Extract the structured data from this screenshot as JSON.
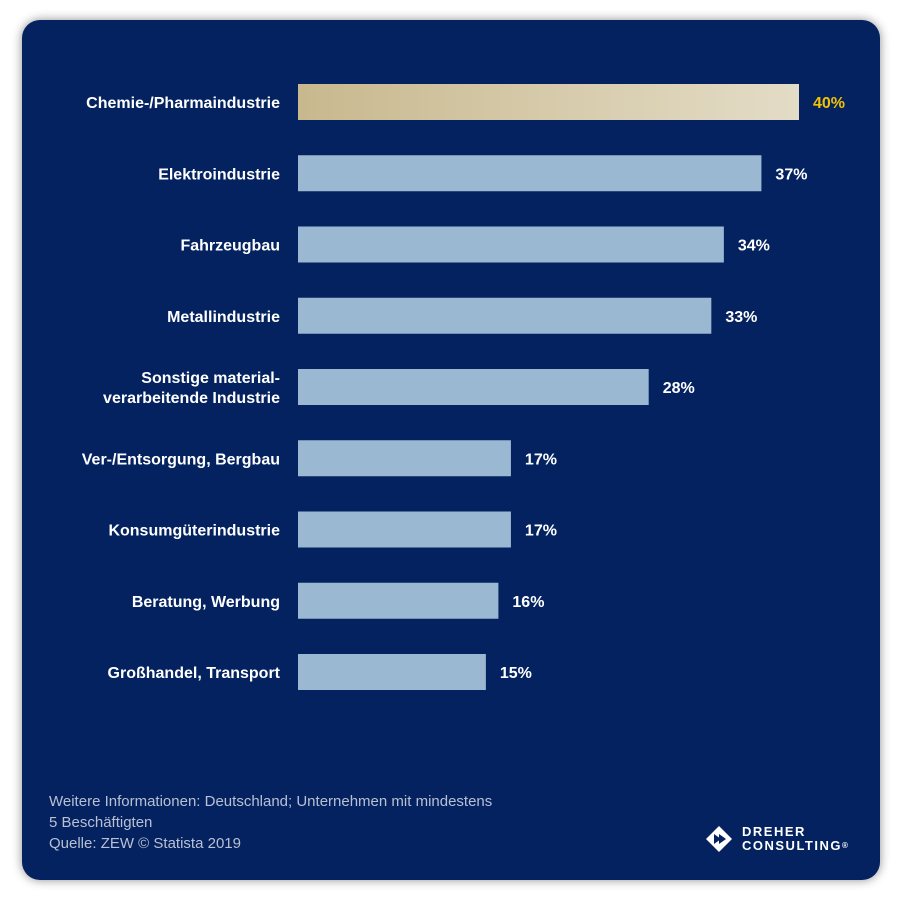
{
  "chart_data": {
    "type": "bar",
    "orientation": "horizontal",
    "categories": [
      "Chemie-/Pharmaindustrie",
      "Elektroindustrie",
      "Fahrzeugbau",
      "Metallindustrie",
      "Sonstige material- verarbeitende Industrie",
      "Ver-/Entsorgung, Bergbau",
      "Konsumgüterindustrie",
      "Beratung, Werbung",
      "Großhandel, Transport"
    ],
    "category_lines": [
      [
        "Chemie-/Pharmaindustrie"
      ],
      [
        "Elektroindustrie"
      ],
      [
        "Fahrzeugbau"
      ],
      [
        "Metallindustrie"
      ],
      [
        "Sonstige material-",
        "verarbeitende Industrie"
      ],
      [
        "Ver-/Entsorgung, Bergbau"
      ],
      [
        "Konsumgüterindustrie"
      ],
      [
        "Beratung, Werbung"
      ],
      [
        "Großhandel, Transport"
      ]
    ],
    "values": [
      40,
      37,
      34,
      33,
      28,
      17,
      17,
      16,
      15
    ],
    "value_labels": [
      "40%",
      "37%",
      "34%",
      "33%",
      "28%",
      "17%",
      "17%",
      "16%",
      "15%"
    ],
    "highlight_index": 0,
    "unit": "%",
    "xlim": [
      0,
      40
    ]
  },
  "colors": {
    "background": "#03225f",
    "bar": "#9bb8d3",
    "highlight_bar_start": "#c8b88e",
    "highlight_bar_end": "#e3dcc6",
    "highlight_label": "#f2c300",
    "text": "#ffffff"
  },
  "footer": {
    "line1": "Weitere Informationen: Deutschland; Unternehmen mit mindestens",
    "line2": "5 Beschäftigten",
    "line3": "Quelle: ZEW © Statista 2019"
  },
  "logo": {
    "line1": "DREHER",
    "line2": "CONSULTING",
    "mark": "®",
    "icon": "diamond-arrow-icon"
  }
}
